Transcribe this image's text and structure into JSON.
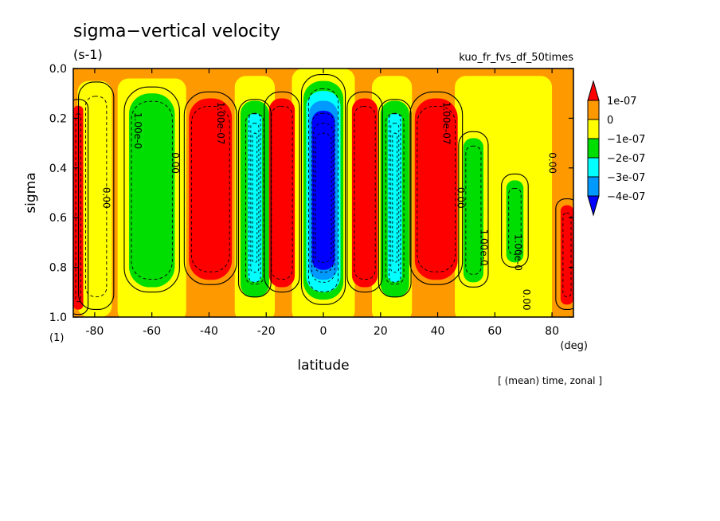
{
  "title": "sigma−vertical velocity",
  "units": "(s-1)",
  "experiment": "kuo_fr_fvs_df_50times",
  "footer": "[ (mean) time, zonal ]",
  "chart_data": {
    "type": "heatmap",
    "title": "sigma−vertical velocity",
    "units": "(s-1)",
    "xlabel": "latitude",
    "xunit": "(deg)",
    "ylabel": "sigma",
    "yunit": "(1)",
    "xlim": [
      -87.5,
      87.5
    ],
    "ylim": [
      1.0,
      0.0
    ],
    "y_inverted": true,
    "x_ticks": [
      -80,
      -60,
      -40,
      -20,
      0,
      20,
      40,
      60,
      80
    ],
    "x_tick_labels": [
      "-80",
      "-60",
      "-40",
      "-20",
      "0",
      "20",
      "40",
      "60",
      "80"
    ],
    "y_ticks": [
      0.0,
      0.2,
      0.4,
      0.6,
      0.8,
      1.0
    ],
    "y_tick_labels": [
      "0.0",
      "0.2",
      "0.4",
      "0.6",
      "0.8",
      "1.0"
    ],
    "colorbar_levels": [
      1e-07,
      0,
      -1e-07,
      -2e-07,
      -3e-07,
      -4e-07
    ],
    "colorbar_labels": [
      "1e-07",
      "0",
      "−1e-07",
      "−2e-07",
      "−3e-07",
      "−4e-07"
    ],
    "colorbar_colors": [
      "#ff0000",
      "#ff9900",
      "#ffff00",
      "#00dd00",
      "#00ffff",
      "#0099ff",
      "#0000ff"
    ],
    "bands": [
      {
        "lat": [
          -87.5,
          -84
        ],
        "sigma": [
          0.15,
          0.97
        ],
        "class": "red"
      },
      {
        "lat": [
          -84,
          -75
        ],
        "sigma": [
          0.08,
          0.95
        ],
        "class": "yellow"
      },
      {
        "lat": [
          -68,
          -52
        ],
        "sigma": [
          0.1,
          0.88
        ],
        "class": "green"
      },
      {
        "lat": [
          -47,
          -32
        ],
        "sigma": [
          0.12,
          0.85
        ],
        "class": "red"
      },
      {
        "lat": [
          -28,
          -20
        ],
        "sigma": [
          0.15,
          0.9
        ],
        "class": "cyan"
      },
      {
        "lat": [
          -19,
          -10
        ],
        "sigma": [
          0.12,
          0.88
        ],
        "class": "red"
      },
      {
        "lat": [
          -6,
          6
        ],
        "sigma": [
          0.05,
          0.93
        ],
        "class": "blue"
      },
      {
        "lat": [
          10,
          19
        ],
        "sigma": [
          0.12,
          0.88
        ],
        "class": "red"
      },
      {
        "lat": [
          21,
          29
        ],
        "sigma": [
          0.15,
          0.9
        ],
        "class": "cyan"
      },
      {
        "lat": [
          32,
          47
        ],
        "sigma": [
          0.12,
          0.85
        ],
        "class": "red"
      },
      {
        "lat": [
          49,
          56
        ],
        "sigma": [
          0.28,
          0.86
        ],
        "class": "green"
      },
      {
        "lat": [
          64,
          70
        ],
        "sigma": [
          0.45,
          0.78
        ],
        "class": "green"
      },
      {
        "lat": [
          83,
          87.5
        ],
        "sigma": [
          0.55,
          0.95
        ],
        "class": "red"
      }
    ],
    "contour_labels": [
      "1.00e-07",
      "0.00",
      "1.00e-0",
      "0.00",
      "1.00e-0"
    ],
    "legend_position": "right"
  }
}
